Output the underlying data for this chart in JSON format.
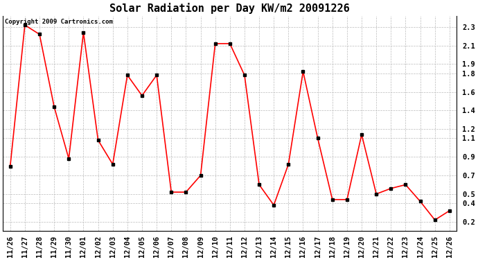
{
  "title": "Solar Radiation per Day KW/m2 20091226",
  "copyright_text": "Copyright 2009 Cartronics.com",
  "labels": [
    "11/26",
    "11/27",
    "11/28",
    "11/29",
    "11/30",
    "12/01",
    "12/02",
    "12/03",
    "12/04",
    "12/05",
    "12/06",
    "12/07",
    "12/08",
    "12/09",
    "12/10",
    "12/11",
    "12/12",
    "12/13",
    "12/14",
    "12/15",
    "12/16",
    "12/17",
    "12/18",
    "12/19",
    "12/20",
    "12/21",
    "12/22",
    "12/23",
    "12/24",
    "12/25",
    "12/26"
  ],
  "values": [
    0.8,
    2.32,
    2.22,
    1.44,
    0.88,
    2.24,
    1.08,
    0.82,
    1.78,
    1.56,
    1.78,
    0.52,
    0.52,
    0.7,
    2.12,
    2.12,
    1.78,
    0.6,
    0.38,
    0.82,
    1.82,
    1.1,
    0.44,
    0.44,
    1.14,
    0.5,
    0.56,
    0.6,
    0.42,
    0.22,
    0.32
  ],
  "line_color": "#ff0000",
  "marker_color": "#000000",
  "bg_color": "#ffffff",
  "plot_bg_color": "#ffffff",
  "grid_color": "#bbbbbb",
  "ylim": [
    0.1,
    2.42
  ],
  "yticks": [
    0.2,
    0.4,
    0.5,
    0.7,
    0.9,
    1.1,
    1.2,
    1.4,
    1.6,
    1.8,
    1.9,
    2.1,
    2.3
  ],
  "title_fontsize": 11,
  "tick_fontsize": 7.5,
  "copyright_fontsize": 6.5,
  "line_width": 1.2,
  "marker_size": 3
}
